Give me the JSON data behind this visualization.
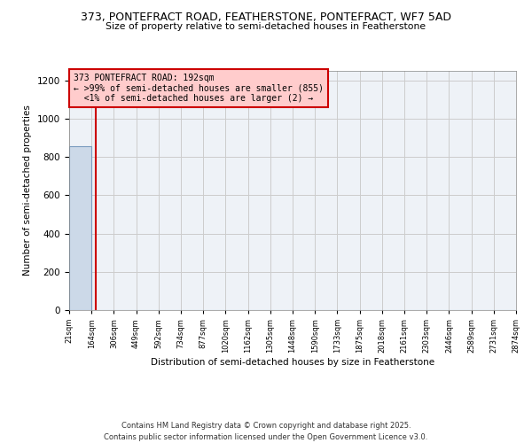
{
  "title": "373, PONTEFRACT ROAD, FEATHERSTONE, PONTEFRACT, WF7 5AD",
  "subtitle": "Size of property relative to semi-detached houses in Featherstone",
  "xlabel": "Distribution of semi-detached houses by size in Featherstone",
  "ylabel": "Number of semi-detached properties",
  "bar_edges": [
    21,
    164,
    306,
    449,
    592,
    734,
    877,
    1020,
    1162,
    1305,
    1448,
    1590,
    1733,
    1875,
    2018,
    2161,
    2303,
    2446,
    2589,
    2731,
    2874
  ],
  "bar_heights": [
    855,
    2,
    0,
    0,
    0,
    0,
    0,
    0,
    0,
    0,
    0,
    0,
    0,
    0,
    0,
    0,
    0,
    0,
    0,
    2
  ],
  "bar_color": "#ccd9e8",
  "bar_edge_color": "#7a9cbf",
  "property_size": 192,
  "property_label": "373 PONTEFRACT ROAD: 192sqm",
  "smaller_pct": ">99%",
  "smaller_n": 855,
  "larger_pct": "<1%",
  "larger_n": 2,
  "vline_color": "#cc0000",
  "annotation_box_color": "#ffcccc",
  "annotation_box_edge": "#cc0000",
  "tick_labels": [
    "21sqm",
    "164sqm",
    "306sqm",
    "449sqm",
    "592sqm",
    "734sqm",
    "877sqm",
    "1020sqm",
    "1162sqm",
    "1305sqm",
    "1448sqm",
    "1590sqm",
    "1733sqm",
    "1875sqm",
    "2018sqm",
    "2161sqm",
    "2303sqm",
    "2446sqm",
    "2589sqm",
    "2731sqm",
    "2874sqm"
  ],
  "ylim": [
    0,
    1250
  ],
  "yticks": [
    0,
    200,
    400,
    600,
    800,
    1000,
    1200
  ],
  "grid_color": "#cccccc",
  "bg_color": "#eef2f7",
  "footer": "Contains HM Land Registry data © Crown copyright and database right 2025.\nContains public sector information licensed under the Open Government Licence v3.0.",
  "figsize": [
    6.0,
    5.0
  ],
  "dpi": 100
}
